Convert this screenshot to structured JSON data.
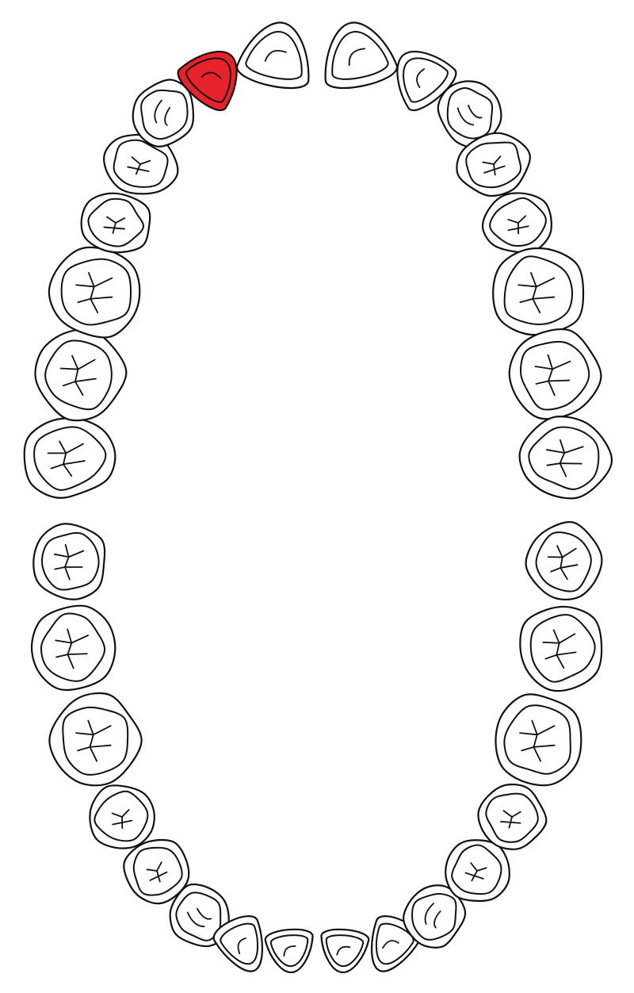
{
  "diagram": {
    "colors": {
      "outline": "#111111",
      "tooth_fill": "#ffffff",
      "highlight": "#e8212b"
    },
    "highlighted_tooth": "upper-right-lateral-incisor",
    "upper_arch": [
      {
        "id": "upper-right-third-molar",
        "kind": "molar",
        "highlighted": false
      },
      {
        "id": "upper-right-second-molar",
        "kind": "molar",
        "highlighted": false
      },
      {
        "id": "upper-right-first-molar",
        "kind": "molar",
        "highlighted": false
      },
      {
        "id": "upper-right-second-premolar",
        "kind": "premolar",
        "highlighted": false
      },
      {
        "id": "upper-right-first-premolar",
        "kind": "premolar",
        "highlighted": false
      },
      {
        "id": "upper-right-canine",
        "kind": "canine",
        "highlighted": false
      },
      {
        "id": "upper-right-lateral-incisor",
        "kind": "incisor",
        "highlighted": true
      },
      {
        "id": "upper-right-central-incisor",
        "kind": "incisor",
        "highlighted": false
      },
      {
        "id": "upper-left-central-incisor",
        "kind": "incisor",
        "highlighted": false
      },
      {
        "id": "upper-left-lateral-incisor",
        "kind": "incisor",
        "highlighted": false
      },
      {
        "id": "upper-left-canine",
        "kind": "canine",
        "highlighted": false
      },
      {
        "id": "upper-left-first-premolar",
        "kind": "premolar",
        "highlighted": false
      },
      {
        "id": "upper-left-second-premolar",
        "kind": "premolar",
        "highlighted": false
      },
      {
        "id": "upper-left-first-molar",
        "kind": "molar",
        "highlighted": false
      },
      {
        "id": "upper-left-second-molar",
        "kind": "molar",
        "highlighted": false
      },
      {
        "id": "upper-left-third-molar",
        "kind": "molar",
        "highlighted": false
      }
    ],
    "lower_arch": [
      {
        "id": "lower-right-third-molar",
        "kind": "molar",
        "highlighted": false
      },
      {
        "id": "lower-right-second-molar",
        "kind": "molar",
        "highlighted": false
      },
      {
        "id": "lower-right-first-molar",
        "kind": "molar",
        "highlighted": false
      },
      {
        "id": "lower-right-second-premolar",
        "kind": "premolar",
        "highlighted": false
      },
      {
        "id": "lower-right-first-premolar",
        "kind": "premolar",
        "highlighted": false
      },
      {
        "id": "lower-right-canine",
        "kind": "canine",
        "highlighted": false
      },
      {
        "id": "lower-right-lateral-incisor",
        "kind": "incisor",
        "highlighted": false
      },
      {
        "id": "lower-right-central-incisor",
        "kind": "incisor",
        "highlighted": false
      },
      {
        "id": "lower-left-central-incisor",
        "kind": "incisor",
        "highlighted": false
      },
      {
        "id": "lower-left-lateral-incisor",
        "kind": "incisor",
        "highlighted": false
      },
      {
        "id": "lower-left-canine",
        "kind": "canine",
        "highlighted": false
      },
      {
        "id": "lower-left-first-premolar",
        "kind": "premolar",
        "highlighted": false
      },
      {
        "id": "lower-left-second-premolar",
        "kind": "premolar",
        "highlighted": false
      },
      {
        "id": "lower-left-first-molar",
        "kind": "molar",
        "highlighted": false
      },
      {
        "id": "lower-left-second-molar",
        "kind": "molar",
        "highlighted": false
      },
      {
        "id": "lower-left-third-molar",
        "kind": "molar",
        "highlighted": false
      }
    ]
  }
}
